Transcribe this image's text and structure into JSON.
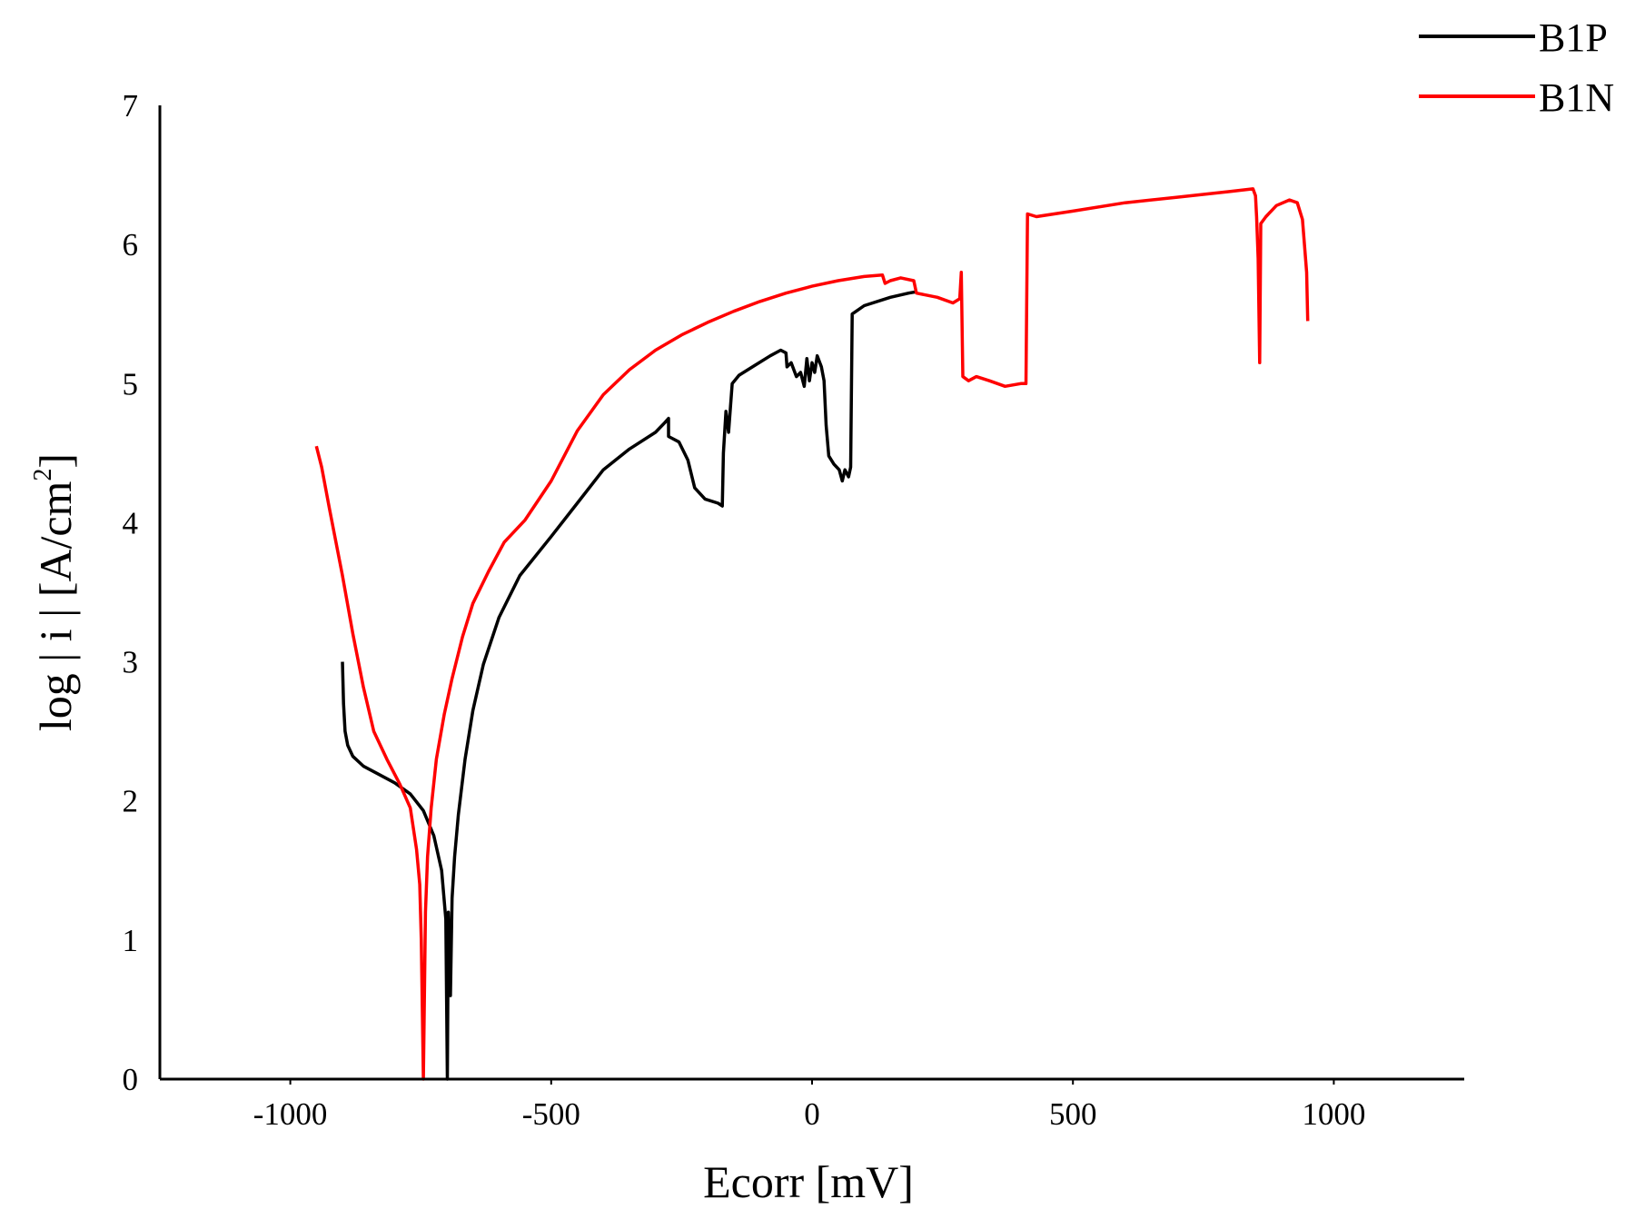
{
  "chart_data": {
    "type": "line",
    "xlabel": "Ecorr [mV]",
    "ylabel": "log | i | [A/cm",
    "ylabel_superscript": "2",
    "ylabel_suffix": "]",
    "xlim": [
      -1250,
      1250
    ],
    "ylim": [
      0,
      7
    ],
    "xticks": [
      -1000,
      -500,
      0,
      500,
      1000
    ],
    "yticks": [
      0,
      1,
      2,
      3,
      4,
      5,
      6,
      7
    ],
    "grid": false,
    "legend": "top-right",
    "series": [
      {
        "name": "B1P",
        "color": "#000000",
        "points": [
          [
            -900,
            3.0
          ],
          [
            -898,
            2.7
          ],
          [
            -895,
            2.5
          ],
          [
            -890,
            2.4
          ],
          [
            -880,
            2.32
          ],
          [
            -860,
            2.25
          ],
          [
            -830,
            2.19
          ],
          [
            -800,
            2.13
          ],
          [
            -770,
            2.05
          ],
          [
            -745,
            1.93
          ],
          [
            -725,
            1.75
          ],
          [
            -710,
            1.5
          ],
          [
            -702,
            1.15
          ],
          [
            -699,
            0.0
          ],
          [
            -697,
            1.2
          ],
          [
            -693,
            0.6
          ],
          [
            -690,
            1.3
          ],
          [
            -685,
            1.6
          ],
          [
            -678,
            1.9
          ],
          [
            -665,
            2.3
          ],
          [
            -650,
            2.65
          ],
          [
            -630,
            2.98
          ],
          [
            -600,
            3.32
          ],
          [
            -560,
            3.62
          ],
          [
            -500,
            3.9
          ],
          [
            -450,
            4.14
          ],
          [
            -400,
            4.38
          ],
          [
            -350,
            4.53
          ],
          [
            -300,
            4.65
          ],
          [
            -282,
            4.72
          ],
          [
            -275,
            4.75
          ],
          [
            -275,
            4.62
          ],
          [
            -255,
            4.58
          ],
          [
            -238,
            4.45
          ],
          [
            -225,
            4.25
          ],
          [
            -205,
            4.17
          ],
          [
            -180,
            4.14
          ],
          [
            -172,
            4.12
          ],
          [
            -170,
            4.5
          ],
          [
            -165,
            4.8
          ],
          [
            -160,
            4.65
          ],
          [
            -153,
            5.0
          ],
          [
            -140,
            5.06
          ],
          [
            -110,
            5.13
          ],
          [
            -80,
            5.2
          ],
          [
            -60,
            5.24
          ],
          [
            -50,
            5.22
          ],
          [
            -48,
            5.12
          ],
          [
            -40,
            5.15
          ],
          [
            -30,
            5.05
          ],
          [
            -22,
            5.08
          ],
          [
            -15,
            4.98
          ],
          [
            -10,
            5.18
          ],
          [
            -5,
            5.02
          ],
          [
            0,
            5.15
          ],
          [
            5,
            5.08
          ],
          [
            10,
            5.2
          ],
          [
            18,
            5.12
          ],
          [
            23,
            5.02
          ],
          [
            27,
            4.7
          ],
          [
            32,
            4.48
          ],
          [
            42,
            4.42
          ],
          [
            52,
            4.38
          ],
          [
            58,
            4.3
          ],
          [
            63,
            4.38
          ],
          [
            70,
            4.33
          ],
          [
            74,
            4.4
          ],
          [
            77,
            5.5
          ],
          [
            100,
            5.56
          ],
          [
            150,
            5.62
          ],
          [
            185,
            5.65
          ],
          [
            200,
            5.66
          ]
        ]
      },
      {
        "name": "B1N",
        "color": "#ff0000",
        "points": [
          [
            -950,
            4.55
          ],
          [
            -940,
            4.4
          ],
          [
            -925,
            4.1
          ],
          [
            -900,
            3.62
          ],
          [
            -880,
            3.2
          ],
          [
            -860,
            2.82
          ],
          [
            -840,
            2.5
          ],
          [
            -815,
            2.3
          ],
          [
            -790,
            2.12
          ],
          [
            -770,
            1.95
          ],
          [
            -758,
            1.65
          ],
          [
            -752,
            1.4
          ],
          [
            -749,
            1.0
          ],
          [
            -745,
            0.0
          ],
          [
            -741,
            1.2
          ],
          [
            -737,
            1.6
          ],
          [
            -730,
            1.95
          ],
          [
            -720,
            2.3
          ],
          [
            -705,
            2.62
          ],
          [
            -690,
            2.88
          ],
          [
            -670,
            3.18
          ],
          [
            -650,
            3.42
          ],
          [
            -620,
            3.65
          ],
          [
            -590,
            3.86
          ],
          [
            -550,
            4.02
          ],
          [
            -500,
            4.3
          ],
          [
            -450,
            4.66
          ],
          [
            -400,
            4.92
          ],
          [
            -350,
            5.1
          ],
          [
            -300,
            5.24
          ],
          [
            -250,
            5.35
          ],
          [
            -200,
            5.44
          ],
          [
            -150,
            5.52
          ],
          [
            -100,
            5.59
          ],
          [
            -50,
            5.65
          ],
          [
            0,
            5.7
          ],
          [
            50,
            5.74
          ],
          [
            100,
            5.77
          ],
          [
            135,
            5.78
          ],
          [
            140,
            5.72
          ],
          [
            150,
            5.74
          ],
          [
            170,
            5.76
          ],
          [
            195,
            5.74
          ],
          [
            200,
            5.65
          ],
          [
            240,
            5.62
          ],
          [
            270,
            5.58
          ],
          [
            283,
            5.61
          ],
          [
            286,
            5.8
          ],
          [
            289,
            5.05
          ],
          [
            300,
            5.02
          ],
          [
            315,
            5.05
          ],
          [
            340,
            5.02
          ],
          [
            370,
            4.98
          ],
          [
            400,
            5.0
          ],
          [
            410,
            5.0
          ],
          [
            413,
            6.22
          ],
          [
            430,
            6.2
          ],
          [
            500,
            6.24
          ],
          [
            600,
            6.3
          ],
          [
            700,
            6.34
          ],
          [
            800,
            6.38
          ],
          [
            845,
            6.4
          ],
          [
            850,
            6.35
          ],
          [
            852,
            6.2
          ],
          [
            855,
            5.9
          ],
          [
            858,
            5.15
          ],
          [
            860,
            6.15
          ],
          [
            870,
            6.2
          ],
          [
            890,
            6.28
          ],
          [
            915,
            6.32
          ],
          [
            930,
            6.3
          ],
          [
            940,
            6.18
          ],
          [
            948,
            5.8
          ],
          [
            950,
            5.45
          ]
        ]
      }
    ]
  }
}
